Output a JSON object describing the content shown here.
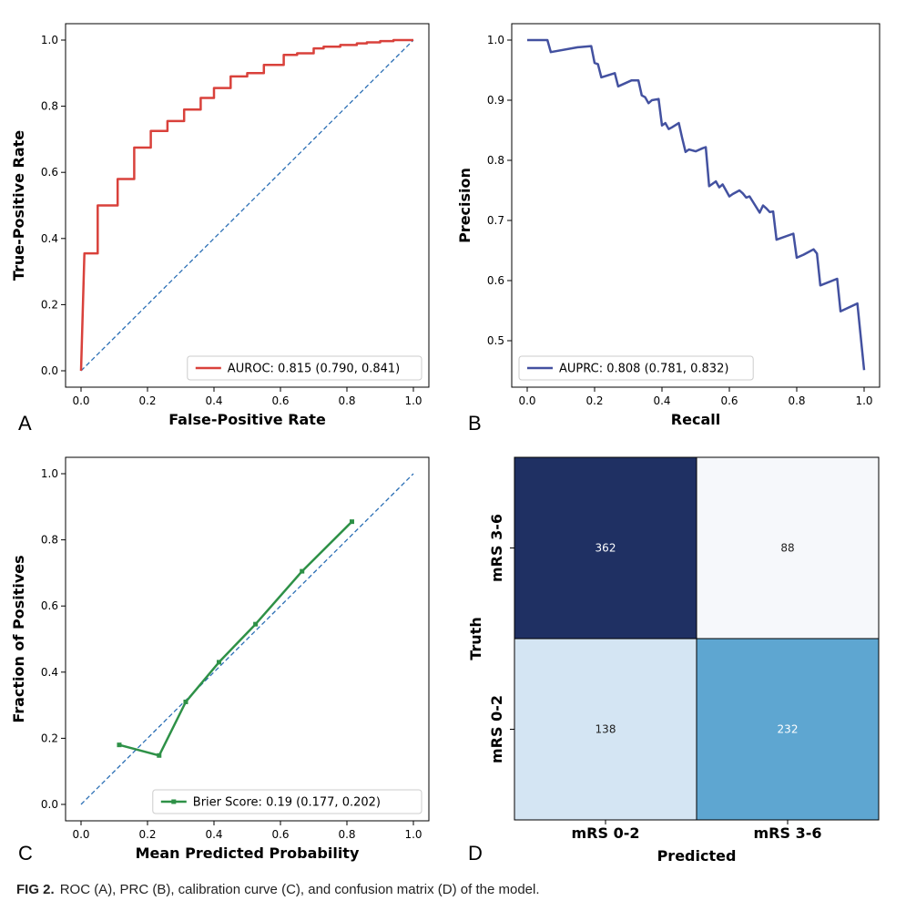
{
  "caption": {
    "label": "FIG 2.",
    "text": "ROC (A), PRC (B), calibration curve (C), and confusion matrix (D) of the model."
  },
  "colors": {
    "roc": "#d9413b",
    "prc": "#4351a0",
    "calibration": "#2e9147",
    "diagonal": "#2b6fb5",
    "cm_dark": "#1f3063",
    "cm_light": "#f6f8fb",
    "cm_pale": "#d4e5f3",
    "cm_mid": "#5ea6d1"
  },
  "chart_data": [
    {
      "panel": "A",
      "type": "line",
      "xlabel": "False-Positive Rate",
      "ylabel": "True-Positive Rate",
      "xlim": [
        0,
        1
      ],
      "ylim": [
        0,
        1
      ],
      "xticks": [
        "0.0",
        "0.2",
        "0.4",
        "0.6",
        "0.8",
        "1.0"
      ],
      "yticks": [
        "0.0",
        "0.2",
        "0.4",
        "0.6",
        "0.8",
        "1.0"
      ],
      "legend": {
        "label": "AUROC: 0.815 (0.790, 0.841)",
        "position": "lower-right"
      },
      "diagonal": true,
      "series": [
        {
          "name": "AUROC: 0.815 (0.790, 0.841)",
          "x": [
            0,
            0.01,
            0.01,
            0.05,
            0.05,
            0.11,
            0.11,
            0.16,
            0.16,
            0.21,
            0.21,
            0.26,
            0.26,
            0.31,
            0.31,
            0.36,
            0.36,
            0.4,
            0.4,
            0.45,
            0.45,
            0.5,
            0.5,
            0.55,
            0.55,
            0.61,
            0.61,
            0.65,
            0.65,
            0.7,
            0.7,
            0.73,
            0.73,
            0.78,
            0.78,
            0.83,
            0.83,
            0.86,
            0.86,
            0.9,
            0.9,
            0.94,
            0.94,
            1.0
          ],
          "y": [
            0,
            0.355,
            0.355,
            0.355,
            0.5,
            0.5,
            0.58,
            0.58,
            0.675,
            0.675,
            0.725,
            0.725,
            0.755,
            0.755,
            0.79,
            0.79,
            0.825,
            0.825,
            0.855,
            0.855,
            0.89,
            0.89,
            0.9,
            0.9,
            0.925,
            0.925,
            0.955,
            0.955,
            0.96,
            0.96,
            0.975,
            0.975,
            0.98,
            0.98,
            0.985,
            0.985,
            0.99,
            0.99,
            0.993,
            0.993,
            0.997,
            0.997,
            1.0,
            1.0
          ]
        }
      ]
    },
    {
      "panel": "B",
      "type": "line",
      "xlabel": "Recall",
      "ylabel": "Precision",
      "xlim": [
        0,
        1
      ],
      "ylim": [
        0.45,
        1.0
      ],
      "xticks": [
        "0.0",
        "0.2",
        "0.4",
        "0.6",
        "0.8",
        "1.0"
      ],
      "yticks": [
        "0.5",
        "0.6",
        "0.7",
        "0.8",
        "0.9",
        "1.0"
      ],
      "legend": {
        "label": "AUPRC: 0.808 (0.781, 0.832)",
        "position": "lower-left"
      },
      "series": [
        {
          "name": "AUPRC: 0.808 (0.781, 0.832)",
          "x": [
            0.0,
            0.06,
            0.07,
            0.15,
            0.19,
            0.2,
            0.21,
            0.22,
            0.26,
            0.27,
            0.31,
            0.33,
            0.34,
            0.35,
            0.36,
            0.37,
            0.39,
            0.4,
            0.41,
            0.42,
            0.43,
            0.45,
            0.46,
            0.47,
            0.48,
            0.5,
            0.52,
            0.53,
            0.54,
            0.56,
            0.57,
            0.58,
            0.6,
            0.61,
            0.63,
            0.64,
            0.65,
            0.66,
            0.69,
            0.7,
            0.71,
            0.72,
            0.73,
            0.74,
            0.79,
            0.8,
            0.82,
            0.85,
            0.86,
            0.87,
            0.92,
            0.93,
            0.98,
            1.0
          ],
          "y": [
            1.0,
            1.0,
            0.98,
            0.988,
            0.99,
            0.962,
            0.96,
            0.938,
            0.945,
            0.923,
            0.933,
            0.933,
            0.908,
            0.905,
            0.895,
            0.9,
            0.902,
            0.858,
            0.862,
            0.852,
            0.855,
            0.862,
            0.837,
            0.814,
            0.818,
            0.815,
            0.82,
            0.822,
            0.757,
            0.765,
            0.755,
            0.76,
            0.74,
            0.744,
            0.75,
            0.745,
            0.738,
            0.74,
            0.713,
            0.725,
            0.72,
            0.714,
            0.715,
            0.668,
            0.678,
            0.638,
            0.643,
            0.652,
            0.645,
            0.592,
            0.603,
            0.549,
            0.562,
            0.451
          ]
        }
      ]
    },
    {
      "panel": "C",
      "type": "line",
      "xlabel": "Mean Predicted Probability",
      "ylabel": "Fraction of Positives",
      "xlim": [
        0,
        1
      ],
      "ylim": [
        0,
        1
      ],
      "xticks": [
        "0.0",
        "0.2",
        "0.4",
        "0.6",
        "0.8",
        "1.0"
      ],
      "yticks": [
        "0.0",
        "0.2",
        "0.4",
        "0.6",
        "0.8",
        "1.0"
      ],
      "legend": {
        "label": "Brier Score: 0.19 (0.177, 0.202)",
        "position": "lower-right"
      },
      "diagonal": true,
      "series": [
        {
          "name": "Brier Score: 0.19 (0.177, 0.202)",
          "marker": "square",
          "x": [
            0.115,
            0.235,
            0.315,
            0.415,
            0.525,
            0.665,
            0.815
          ],
          "y": [
            0.18,
            0.148,
            0.31,
            0.43,
            0.545,
            0.705,
            0.855
          ]
        }
      ]
    },
    {
      "panel": "D",
      "type": "heatmap",
      "xlabel": "Predicted",
      "ylabel": "Truth",
      "xticks": [
        "mRS 0-2",
        "mRS 3-6"
      ],
      "rows": [
        "mRS 3-6",
        "mRS 0-2"
      ],
      "values": [
        [
          362,
          88
        ],
        [
          138,
          232
        ]
      ],
      "value_labels": [
        [
          "362",
          "88"
        ],
        [
          "138",
          "232"
        ]
      ]
    }
  ],
  "panel_letters": [
    "A",
    "B",
    "C",
    "D"
  ]
}
